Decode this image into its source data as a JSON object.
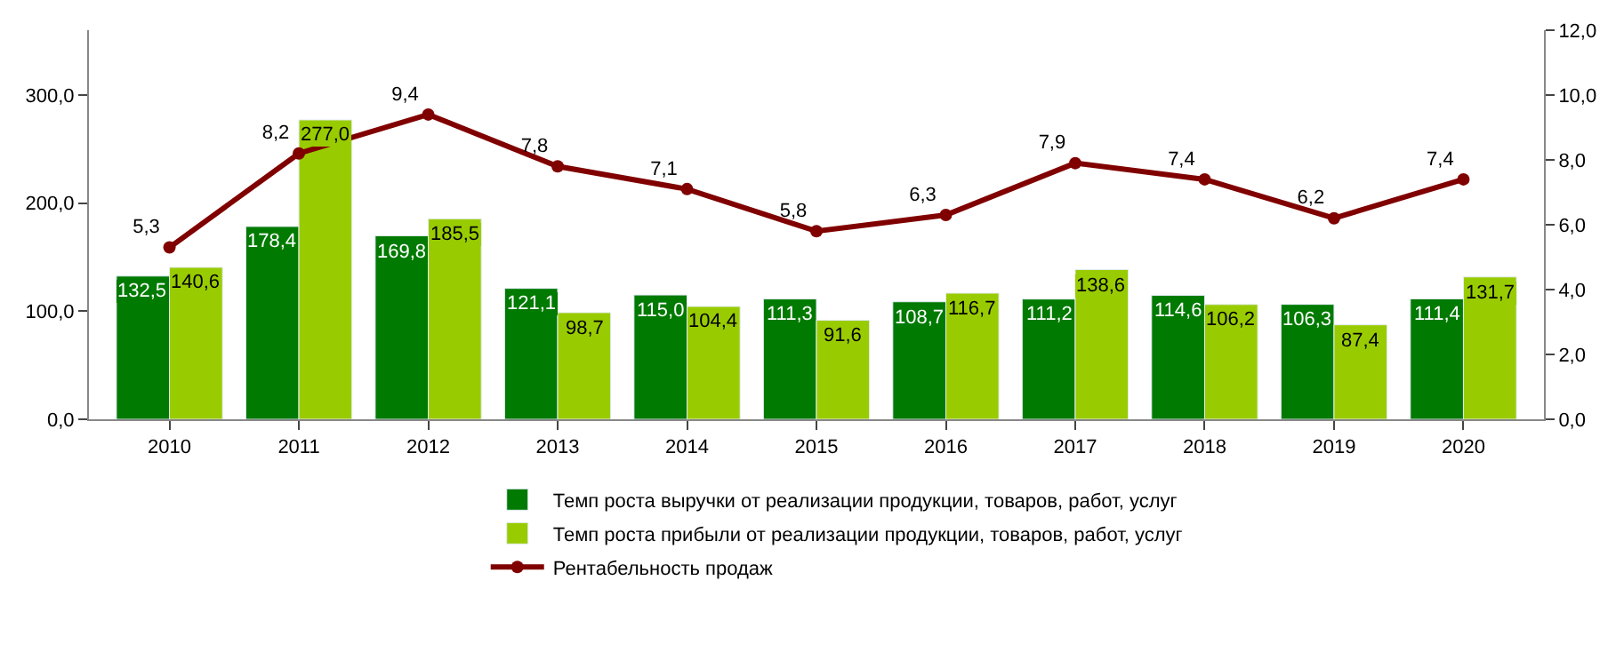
{
  "chart_data": {
    "type": "bar",
    "categories": [
      "2010",
      "2011",
      "2012",
      "2013",
      "2014",
      "2015",
      "2016",
      "2017",
      "2018",
      "2019",
      "2020"
    ],
    "series": [
      {
        "name": "Темп роста выручки от реализации продукции, товаров, работ, услуг",
        "color": "#007a00",
        "values": [
          132.5,
          178.4,
          169.8,
          121.1,
          115.0,
          111.3,
          108.7,
          111.2,
          114.6,
          106.3,
          111.4
        ],
        "value_labels": [
          "132,5",
          "178,4",
          "169,8",
          "121,1",
          "115,0",
          "111,3",
          "108,7",
          "111,2",
          "114,6",
          "106,3",
          "111,4"
        ]
      },
      {
        "name": "Темп роста прибыли от реализации продукции, товаров, работ, услуг",
        "color": "#99cc00",
        "values": [
          140.6,
          277.0,
          185.5,
          98.7,
          104.4,
          91.6,
          116.7,
          138.6,
          106.2,
          87.4,
          131.7
        ],
        "value_labels": [
          "140,6",
          "277,0",
          "185,5",
          "98,7",
          "104,4",
          "91,6",
          "116,7",
          "138,6",
          "106,2",
          "87,4",
          "131,7"
        ]
      },
      {
        "name": "Рентабельность продаж",
        "type": "line",
        "axis": "y2",
        "color": "#800000",
        "marker": "circle",
        "values": [
          5.3,
          8.2,
          9.4,
          7.8,
          7.1,
          5.8,
          6.3,
          7.9,
          7.4,
          6.2,
          7.4
        ],
        "value_labels": [
          "5,3",
          "8,2",
          "9,4",
          "7,8",
          "7,1",
          "5,8",
          "6,3",
          "7,9",
          "7,4",
          "6,2",
          "7,4"
        ]
      }
    ],
    "ylim": [
      0,
      360
    ],
    "yticks": [
      {
        "value": 0,
        "label": "0,0"
      },
      {
        "value": 100,
        "label": "100,0"
      },
      {
        "value": 200,
        "label": "200,0"
      },
      {
        "value": 300,
        "label": "300,0"
      }
    ],
    "y2lim": [
      0,
      12
    ],
    "y2ticks": [
      {
        "value": 0,
        "label": "0,0"
      },
      {
        "value": 2,
        "label": "2,0"
      },
      {
        "value": 4,
        "label": "4,0"
      },
      {
        "value": 6,
        "label": "6,0"
      },
      {
        "value": 8,
        "label": "8,0"
      },
      {
        "value": 10,
        "label": "10,0"
      },
      {
        "value": 12,
        "label": "12,0"
      }
    ],
    "legend": "bottom"
  }
}
